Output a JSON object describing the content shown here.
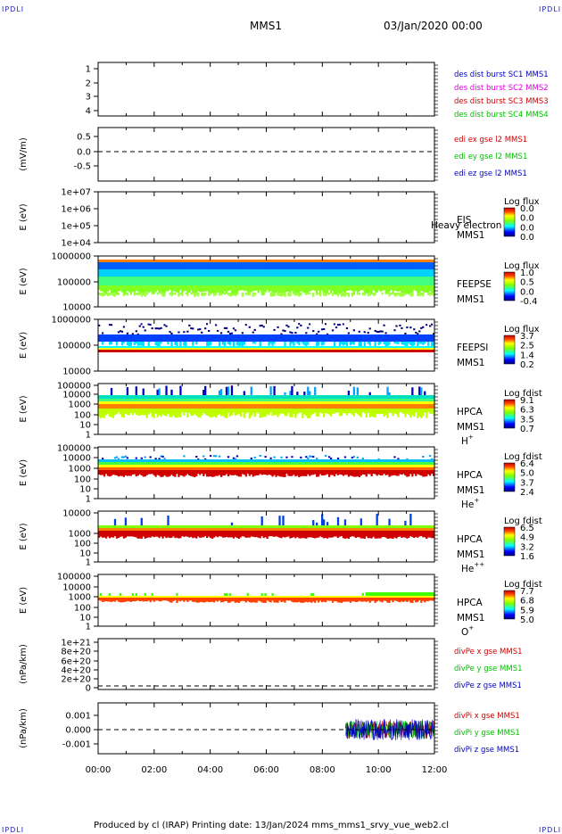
{
  "header": {
    "corner_left": "IPDLI",
    "corner_right": "IPDLI",
    "title": "MMS1",
    "date": "03/Jan/2020 00:00"
  },
  "footer": {
    "text": "Produced by cl (IRAP)    Printing date: 13/Jan/2024    mms_mms1_srvy_vue_web2.cl",
    "corner_left": "IPDLI",
    "corner_right": "IPDLI"
  },
  "colors": {
    "red": "#d00000",
    "green": "#00c000",
    "blue": "#0000c0",
    "magenta": "#e000e0"
  },
  "chart_data": [
    {
      "id": "p1",
      "type": "line",
      "ylabel": "",
      "yticks": [
        "1",
        "2",
        "3",
        "4"
      ],
      "ylim": [
        0.7,
        4.3
      ],
      "legend": [
        {
          "text": "des dist burst SC1 MMS1",
          "color": "#0000c0"
        },
        {
          "text": "des dist burst SC2 MMS2",
          "color": "#e000e0"
        },
        {
          "text": "des dist burst SC3 MMS3",
          "color": "#d00000"
        },
        {
          "text": "des dist burst SC4 MMS4",
          "color": "#00c000"
        }
      ],
      "series": []
    },
    {
      "id": "p2",
      "type": "line",
      "ylabel": "(mV/m)",
      "yticks": [
        "0.5",
        "0.0",
        "-0.5"
      ],
      "ylim": [
        -0.85,
        0.85
      ],
      "dashed_zero": true,
      "legend": [
        {
          "text": "edi ex gse l2 MMS1",
          "color": "#d00000"
        },
        {
          "text": "edi ey gse l2 MMS1",
          "color": "#00c000"
        },
        {
          "text": "edi ez gse l2 MMS1",
          "color": "#0000c0"
        }
      ],
      "series": []
    },
    {
      "id": "p3",
      "type": "heatmap",
      "ylabel": "E (eV)",
      "yticks": [
        "1e+07",
        "1e+06",
        "1e+05",
        "1e+04"
      ],
      "log_y": true,
      "side_labels": [
        "EIS",
        "MMS1"
      ],
      "overlay": "Heavy electron to",
      "cbar_title": "Log flux",
      "cbar": [
        "0.0",
        "0.0",
        "0.0",
        "0.0"
      ]
    },
    {
      "id": "p4",
      "type": "heatmap",
      "ylabel": "E (eV)",
      "yticks": [
        "1000000",
        "100000",
        "10000"
      ],
      "log_y": true,
      "side_labels": [
        "FEEPSE",
        "MMS1"
      ],
      "cbar_title": "Log flux",
      "cbar": [
        "1.0",
        "0.5",
        "0.0",
        "-0.4"
      ]
    },
    {
      "id": "p5",
      "type": "heatmap",
      "ylabel": "E (eV)",
      "yticks": [
        "1000000",
        "100000",
        "10000"
      ],
      "log_y": true,
      "side_labels": [
        "FEEPSI",
        "MMS1"
      ],
      "cbar_title": "Log flux",
      "cbar": [
        "3.7",
        "2.5",
        "1.4",
        "0.2"
      ]
    },
    {
      "id": "p6",
      "type": "heatmap",
      "ylabel": "E (eV)",
      "yticks": [
        "100000",
        "10000",
        "1000",
        "100",
        "10",
        "1"
      ],
      "log_y": true,
      "side_labels": [
        "HPCA",
        "MMS1"
      ],
      "species": "H",
      "charge": "+",
      "cbar_title": "Log fdist",
      "cbar": [
        "9.1",
        "6.3",
        "3.5",
        "0.7"
      ]
    },
    {
      "id": "p7",
      "type": "heatmap",
      "ylabel": "E (eV)",
      "yticks": [
        "100000",
        "10000",
        "1000",
        "100",
        "10",
        "1"
      ],
      "log_y": true,
      "side_labels": [
        "HPCA",
        "MMS1"
      ],
      "species": "He",
      "charge": "+",
      "cbar_title": "Log fdist",
      "cbar": [
        "6.4",
        "5.0",
        "3.7",
        "2.4"
      ]
    },
    {
      "id": "p8",
      "type": "heatmap",
      "ylabel": "E (eV)",
      "yticks": [
        "10000",
        "1000",
        "100",
        "10",
        "1"
      ],
      "log_y": true,
      "side_labels": [
        "HPCA",
        "MMS1"
      ],
      "species": "He",
      "charge": "++",
      "cbar_title": "Log fdist",
      "cbar": [
        "6.5",
        "4.9",
        "3.2",
        "1.6"
      ]
    },
    {
      "id": "p9",
      "type": "heatmap",
      "ylabel": "E (eV)",
      "yticks": [
        "100000",
        "10000",
        "1000",
        "100",
        "10",
        "1"
      ],
      "log_y": true,
      "side_labels": [
        "HPCA",
        "MMS1"
      ],
      "species": "O",
      "charge": "+",
      "cbar_title": "Log fdist",
      "cbar": [
        "7.7",
        "6.8",
        "5.9",
        "5.0"
      ]
    },
    {
      "id": "p10",
      "type": "line",
      "ylabel": "(nPa/km)",
      "yticks": [
        "1e+21",
        "8e+20",
        "6e+20",
        "4e+20",
        "2e+20",
        "0"
      ],
      "dashed_zero": true,
      "legend": [
        {
          "text": "divPe x gse MMS1",
          "color": "#d00000"
        },
        {
          "text": "divPe y gse MMS1",
          "color": "#00c000"
        },
        {
          "text": "divPe z gse MMS1",
          "color": "#0000c0"
        }
      ],
      "series": []
    },
    {
      "id": "p11",
      "type": "line",
      "ylabel": "(nPa/km)",
      "yticks": [
        "0.001",
        "0.000",
        "-0.001"
      ],
      "dashed_zero": true,
      "legend": [
        {
          "text": "divPi x gse MMS1",
          "color": "#d00000"
        },
        {
          "text": "divPi y gse MMS1",
          "color": "#00c000"
        },
        {
          "text": "divPi z gse MMS1",
          "color": "#0000c0"
        }
      ],
      "series": [
        {
          "name": "divPi x gse MMS1",
          "x_start": "08:50",
          "x_end": "12:00"
        },
        {
          "name": "divPi y gse MMS1",
          "x_start": "08:50",
          "x_end": "12:00"
        },
        {
          "name": "divPi z gse MMS1",
          "x_start": "08:50",
          "x_end": "12:00"
        }
      ]
    }
  ],
  "xaxis": {
    "ticks": [
      "00:00",
      "02:00",
      "04:00",
      "06:00",
      "08:00",
      "10:00",
      "12:00"
    ],
    "xlim": [
      "00:00",
      "12:00"
    ]
  }
}
